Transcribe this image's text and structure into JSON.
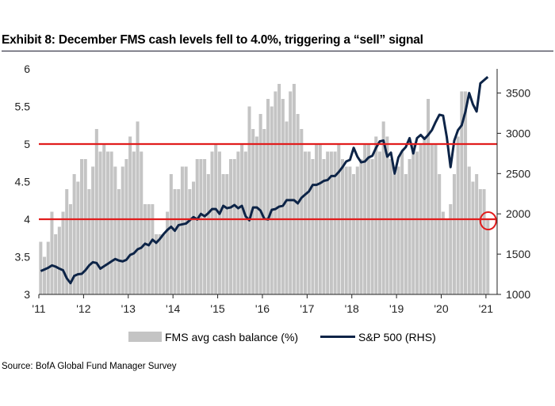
{
  "header": {
    "title": "Exhibit 8: December FMS cash levels fell to 4.0%, triggering a “sell” signal"
  },
  "footer": {
    "source": "Source: BofA Global Fund Manager Survey"
  },
  "colors": {
    "bars": "#c4c4c4",
    "line": "#0d2447",
    "threshold": "#e11d1d",
    "marker": "#e11d1d"
  },
  "chart_data": {
    "type": "bar",
    "title": "Exhibit 8: December FMS cash levels fell to 4.0%, triggering a “sell” signal",
    "x": {
      "start": 2011.0,
      "end": 2021.25,
      "tick_labels": [
        "'11",
        "'12",
        "'13",
        "'14",
        "'15",
        "'16",
        "'17",
        "'18",
        "'19",
        "'20",
        "'21"
      ],
      "tick_values": [
        2011,
        2012,
        2013,
        2014,
        2015,
        2016,
        2017,
        2018,
        2019,
        2020,
        2021
      ]
    },
    "y_left": {
      "min": 3,
      "max": 6,
      "ticks": [
        3,
        3.5,
        4,
        4.5,
        5,
        5.5,
        6
      ]
    },
    "y_right": {
      "min": 1000,
      "max": 3800,
      "ticks": [
        1000,
        1500,
        2000,
        2500,
        3000,
        3500
      ]
    },
    "grid": false,
    "legend_position": "bottom",
    "series": [
      {
        "name": "FMS avg cash balance (%)",
        "type": "bar",
        "axis": "left",
        "start": "2011-01",
        "frequency": "monthly",
        "values": [
          3.7,
          3.5,
          3.7,
          4.1,
          3.8,
          3.9,
          4.1,
          4.4,
          4.2,
          4.6,
          4.5,
          4.8,
          4.8,
          4.4,
          4.7,
          5.2,
          4.9,
          5.0,
          4.9,
          4.9,
          4.7,
          4.4,
          4.7,
          4.8,
          5.1,
          4.9,
          5.3,
          4.9,
          4.2,
          4.2,
          4.2,
          3.8,
          3.8,
          3.8,
          4.1,
          4.6,
          4.4,
          4.4,
          4.7,
          4.7,
          4.4,
          4.5,
          4.8,
          4.8,
          4.8,
          4.6,
          4.9,
          5.0,
          4.9,
          4.6,
          4.6,
          4.8,
          4.8,
          4.9,
          5.0,
          4.9,
          5.5,
          5.2,
          5.1,
          5.4,
          5.2,
          5.6,
          5.5,
          5.7,
          5.8,
          5.6,
          5.3,
          5.7,
          5.8,
          5.4,
          5.2,
          4.9,
          4.9,
          4.8,
          5.0,
          5.0,
          4.8,
          4.9,
          4.9,
          4.9,
          5.0,
          4.8,
          4.7,
          4.7,
          4.6,
          4.7,
          4.8,
          5.0,
          5.0,
          4.8,
          5.1,
          4.9,
          5.3,
          5.1,
          4.8,
          4.6,
          4.7,
          4.9,
          4.6,
          4.8,
          5.0,
          4.9,
          5.0,
          5.1,
          5.6,
          5.0,
          5.0,
          4.6,
          4.1,
          4.0,
          4.2,
          4.6,
          5.1,
          5.7,
          5.7,
          4.7,
          4.5,
          4.6,
          4.4,
          4.4,
          4.0
        ]
      },
      {
        "name": "S&P 500 (RHS)",
        "type": "line",
        "axis": "right",
        "start": "2011-01",
        "frequency": "monthly",
        "values": [
          1290,
          1310,
          1330,
          1360,
          1345,
          1320,
          1300,
          1200,
          1140,
          1230,
          1250,
          1255,
          1300,
          1360,
          1400,
          1390,
          1320,
          1350,
          1380,
          1410,
          1440,
          1420,
          1410,
          1430,
          1490,
          1510,
          1560,
          1580,
          1630,
          1610,
          1680,
          1640,
          1690,
          1750,
          1800,
          1840,
          1790,
          1860,
          1870,
          1880,
          1920,
          1960,
          1930,
          2000,
          1970,
          2010,
          2060,
          2060,
          2000,
          2100,
          2070,
          2080,
          2110,
          2070,
          2100,
          1970,
          1920,
          2080,
          2080,
          2040,
          1940,
          1930,
          2050,
          2060,
          2090,
          2100,
          2170,
          2170,
          2170,
          2130,
          2200,
          2240,
          2280,
          2360,
          2360,
          2380,
          2410,
          2420,
          2470,
          2470,
          2520,
          2580,
          2650,
          2670,
          2820,
          2710,
          2640,
          2650,
          2700,
          2720,
          2820,
          2900,
          2910,
          2710,
          2760,
          2500,
          2700,
          2780,
          2830,
          2940,
          2750,
          2940,
          2980,
          2930,
          2980,
          3040,
          3140,
          3230,
          3220,
          2950,
          2580,
          2910,
          3040,
          3100,
          3270,
          3500,
          3360,
          3270,
          3620,
          3660,
          3700
        ]
      }
    ],
    "thresholds": [
      4.0,
      5.0
    ]
  }
}
